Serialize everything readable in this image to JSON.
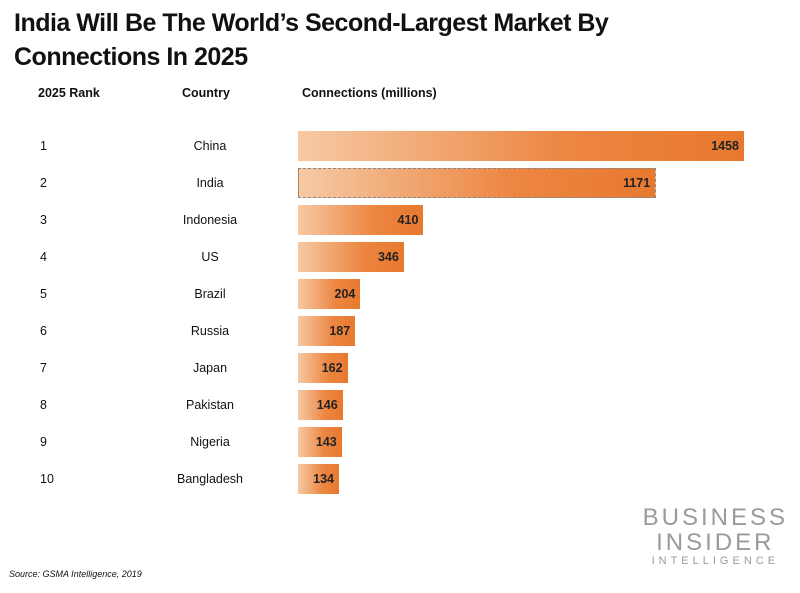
{
  "chart_data": {
    "type": "bar",
    "orientation": "horizontal",
    "title": "India Will Be The World’s Second-Largest Market By Connections In 2025",
    "column_headers": [
      "2025 Rank",
      "Country",
      "Connections (millions)"
    ],
    "ranks": [
      "1",
      "2",
      "3",
      "4",
      "5",
      "6",
      "7",
      "8",
      "9",
      "10"
    ],
    "categories": [
      "China",
      "India",
      "Indonesia",
      "US",
      "Brazil",
      "Russia",
      "Japan",
      "Pakistan",
      "Nigeria",
      "Bangladesh"
    ],
    "values": [
      1458,
      1171,
      410,
      346,
      204,
      187,
      162,
      146,
      143,
      134
    ],
    "highlighted": "India",
    "xlim": [
      0,
      1458
    ],
    "grid": false,
    "source": "Source: GSMA Intelligence, 2019",
    "bar_color": "#e8792f"
  },
  "logo": {
    "line1": "BUSINESS",
    "line2": "INSIDER",
    "line3": "INTELLIGENCE"
  }
}
